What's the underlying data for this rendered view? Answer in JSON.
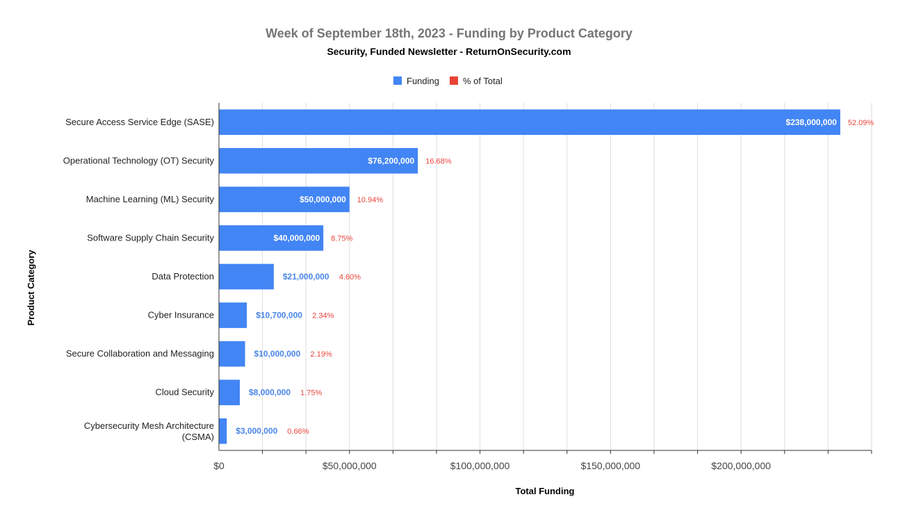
{
  "colors": {
    "funding": "#4285f4",
    "percent": "#ea4335",
    "inside_label": "#ffffff",
    "outside_label": "#4a86e8",
    "grid": "#dddddd",
    "axis": "#333333"
  },
  "legend": {
    "funding_label": "Funding",
    "percent_label": "% of Total"
  },
  "chart_data": {
    "type": "bar",
    "orientation": "horizontal",
    "title": "Week of September 18th, 2023 - Funding by Product Category",
    "subtitle": "Security, Funded Newsletter - ReturnOnSecurity.com",
    "xlabel": "Total Funding",
    "ylabel": "Product Category",
    "xlim": [
      0,
      250000000
    ],
    "xticks": [
      0,
      50000000,
      100000000,
      150000000,
      200000000
    ],
    "xtick_labels": [
      "$0",
      "$50,000,000",
      "$100,000,000",
      "$150,000,000",
      "$200,000,000"
    ],
    "grid": true,
    "legend_position": "top",
    "categories": [
      "Secure Access Service Edge (SASE)",
      "Operational Technology (OT) Security",
      "Machine Learning (ML) Security",
      "Software Supply Chain Security",
      "Data Protection",
      "Cyber Insurance",
      "Secure Collaboration and Messaging",
      "Cloud Security",
      "Cybersecurity Mesh Architecture (CSMA)"
    ],
    "series": [
      {
        "name": "Funding",
        "values": [
          238000000,
          76200000,
          50000000,
          40000000,
          21000000,
          10700000,
          10000000,
          8000000,
          3000000
        ],
        "labels": [
          "$238,000,000",
          "$76,200,000",
          "$50,000,000",
          "$40,000,000",
          "$21,000,000",
          "$10,700,000",
          "$10,000,000",
          "$8,000,000",
          "$3,000,000"
        ]
      },
      {
        "name": "% of Total",
        "values": [
          52.09,
          16.68,
          10.94,
          8.75,
          4.6,
          2.34,
          2.19,
          1.75,
          0.66
        ],
        "labels": [
          "52.09%",
          "16.68%",
          "10.94%",
          "8.75%",
          "4.60%",
          "2.34%",
          "2.19%",
          "1.75%",
          "0.66%"
        ]
      }
    ]
  }
}
